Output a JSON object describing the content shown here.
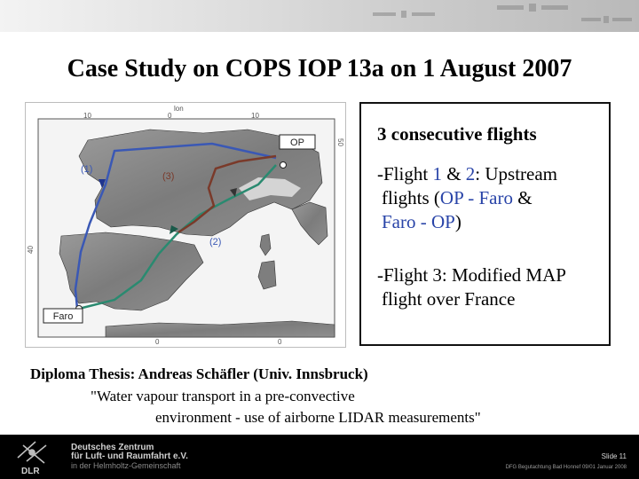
{
  "slide": {
    "title": "Case Study on  COPS IOP 13a on 1 August 2007"
  },
  "map": {
    "coords_top": [
      "lon",
      "10",
      "0",
      "10"
    ],
    "coord_right": "50",
    "coord_left": "40",
    "coords_bottom": [
      "0",
      "0"
    ],
    "labels": {
      "op": "OP",
      "faro": "Faro",
      "flight1": "(1)",
      "flight2": "(2)",
      "flight3": "(3)"
    },
    "colors": {
      "flight_upstream": "#3a58b5",
      "flight_return": "#2a8a70",
      "flight_map": "#7a3a2a"
    }
  },
  "info": {
    "heading": "3 consecutive flights",
    "p1": {
      "prefix": "-Flight ",
      "n1": "1",
      "amp": " & ",
      "n2": "2",
      "rest": ": Upstream",
      "line2_pre": "flights (",
      "op1": "OP",
      "mid1": " - ",
      "faro1": "Faro",
      "tail": " &",
      "faro2": "Faro",
      "mid2": " - ",
      "op2": "OP",
      "close": ")"
    },
    "p2": {
      "line1": "-Flight 3: Modified MAP",
      "line2": "flight over France"
    }
  },
  "thesis": {
    "line1": "Diploma Thesis: Andreas Schäfler (Univ. Innsbruck)",
    "line2": "\"Water vapour transport in a pre-convective",
    "line3": "environment - use of airborne LIDAR measurements\""
  },
  "footer": {
    "logo_abbr": "DLR",
    "logo_line1": "Deutsches Zentrum",
    "logo_line2": "für Luft- und Raumfahrt e.V.",
    "logo_line3": "in der Helmholtz-Gemeinschaft",
    "slide_number": "Slide 11",
    "note": "DFG Begutachtung Bad Honnef 09/01 Januar 2008"
  }
}
